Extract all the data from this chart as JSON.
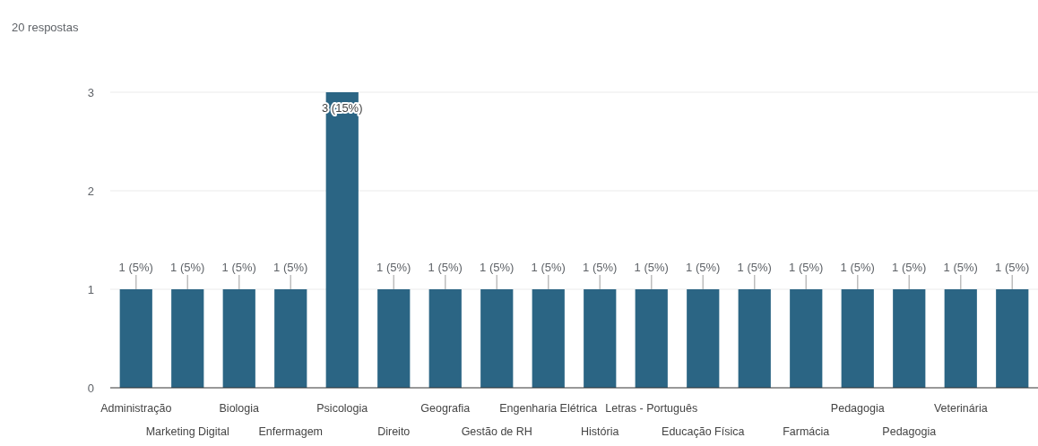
{
  "chart_data": {
    "type": "bar",
    "title": "20 respostas",
    "categories": [
      "Administração",
      "Marketing Digital",
      "Biologia",
      "Enfermagem",
      "Psicologia",
      "Direito",
      "Geografia",
      "Gestão de RH",
      "Engenharia Elétrica",
      "História",
      "Letras - Português",
      "Educação Física",
      null,
      "Farmácia",
      "Pedagogia",
      "Pedagogia",
      "Veterinária",
      null
    ],
    "values": [
      1,
      1,
      1,
      1,
      3,
      1,
      1,
      1,
      1,
      1,
      1,
      1,
      1,
      1,
      1,
      1,
      1,
      1
    ],
    "value_labels": [
      "1 (5%)",
      "1 (5%)",
      "1 (5%)",
      "1 (5%)",
      "3 (15%)",
      "1 (5%)",
      "1 (5%)",
      "1 (5%)",
      "1 (5%)",
      "1 (5%)",
      "1 (5%)",
      "1 (5%)",
      "1 (5%)",
      "1 (5%)",
      "1 (5%)",
      "1 (5%)",
      "1 (5%)",
      "1 (5%)"
    ],
    "color": "#2b6584",
    "ylim": [
      0,
      3
    ],
    "yticks": [
      0,
      1,
      2,
      3
    ],
    "grid": "y"
  }
}
